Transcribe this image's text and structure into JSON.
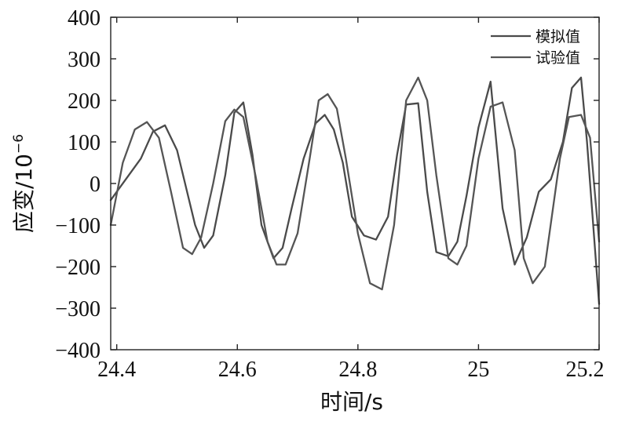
{
  "chart_data": {
    "type": "line",
    "title": "",
    "xlabel": "时间/s",
    "ylabel": "应变/10",
    "ylabel_exponent": "−6",
    "xlim": [
      24.39,
      25.2
    ],
    "ylim": [
      -400,
      400
    ],
    "xticks": [
      24.4,
      24.6,
      24.8,
      25,
      25.2
    ],
    "xtick_labels": [
      "24.4",
      "24.6",
      "24.8",
      "25",
      "25.2"
    ],
    "yticks": [
      -400,
      -300,
      -200,
      -100,
      0,
      100,
      200,
      300,
      400
    ],
    "ytick_labels": [
      "−400",
      "−300",
      "−200",
      "−100",
      "0",
      "100",
      "200",
      "300",
      "400"
    ],
    "grid": false,
    "legend_position": "top-right",
    "series": [
      {
        "name": "模拟值",
        "color": "#4a4a4a",
        "x": [
          24.39,
          24.42,
          24.44,
          24.46,
          24.48,
          24.5,
          24.53,
          24.545,
          24.56,
          24.58,
          24.595,
          24.61,
          24.625,
          24.64,
          24.66,
          24.675,
          24.69,
          24.71,
          24.73,
          24.745,
          24.76,
          24.775,
          24.79,
          24.81,
          24.83,
          24.85,
          24.865,
          24.88,
          24.9,
          24.915,
          24.93,
          24.95,
          24.965,
          24.98,
          25.0,
          25.02,
          25.04,
          25.06,
          25.08,
          25.1,
          25.12,
          25.14,
          25.155,
          25.17,
          25.18,
          25.2
        ],
        "y": [
          -40,
          20,
          60,
          125,
          140,
          80,
          -100,
          -155,
          -125,
          20,
          170,
          195,
          70,
          -100,
          -180,
          -155,
          -60,
          60,
          145,
          165,
          130,
          50,
          -80,
          -125,
          -135,
          -80,
          70,
          190,
          193,
          -20,
          -165,
          -175,
          -140,
          -30,
          135,
          245,
          -60,
          -195,
          -130,
          -20,
          10,
          100,
          230,
          255,
          100,
          -290
        ]
      },
      {
        "name": "试验值",
        "color": "#555555",
        "x": [
          24.39,
          24.41,
          24.43,
          24.45,
          24.47,
          24.49,
          24.51,
          24.525,
          24.54,
          24.56,
          24.58,
          24.595,
          24.61,
          24.63,
          24.65,
          24.665,
          24.68,
          24.7,
          24.72,
          24.735,
          24.75,
          24.765,
          24.78,
          24.8,
          24.82,
          24.84,
          24.86,
          24.88,
          24.9,
          24.915,
          24.93,
          24.95,
          24.965,
          24.98,
          25.0,
          25.02,
          25.04,
          25.06,
          25.075,
          25.09,
          25.11,
          25.135,
          25.15,
          25.17,
          25.185,
          25.2
        ],
        "y": [
          -100,
          50,
          130,
          148,
          110,
          -20,
          -155,
          -170,
          -130,
          0,
          150,
          178,
          160,
          20,
          -140,
          -195,
          -195,
          -120,
          60,
          200,
          215,
          180,
          60,
          -120,
          -240,
          -255,
          -100,
          200,
          255,
          200,
          20,
          -180,
          -195,
          -150,
          60,
          185,
          195,
          80,
          -180,
          -240,
          -200,
          60,
          160,
          165,
          110,
          -140
        ]
      }
    ]
  }
}
